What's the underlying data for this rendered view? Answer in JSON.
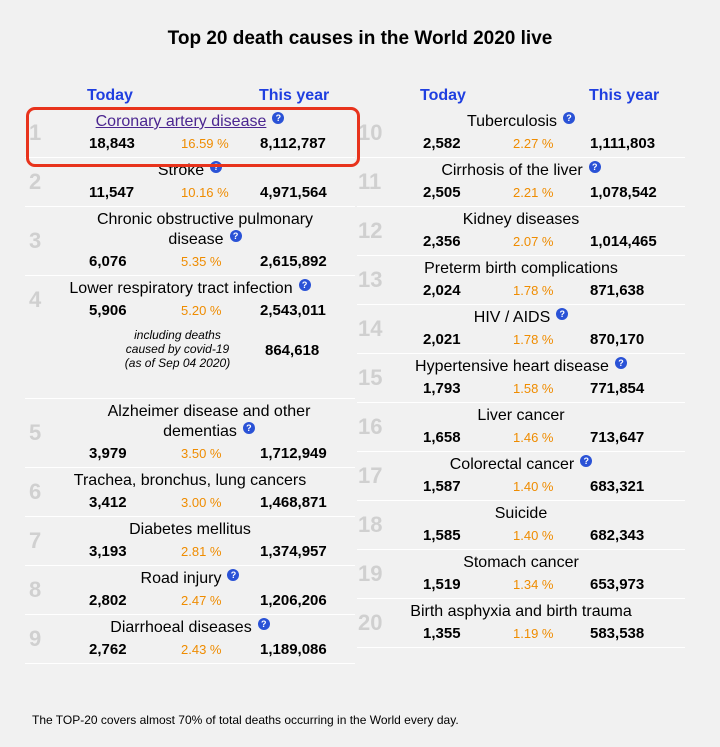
{
  "title": "Top 20 death causes in the World 2020 live",
  "headers": {
    "today": "Today",
    "this_year": "This year"
  },
  "help_glyph": "?",
  "highlight_color": "#e8331c",
  "link_color": "#4b2690",
  "percent_color": "#ef8c00",
  "header_color": "#1f3fe0",
  "left": [
    {
      "rank": "1",
      "name": "Coronary artery disease",
      "today": "18,843",
      "pct": "16.59 %",
      "year": "8,112,787"
    },
    {
      "rank": "2",
      "name": "Stroke",
      "today": "11,547",
      "pct": "10.16 %",
      "year": "4,971,564"
    },
    {
      "rank": "3",
      "name": "Chronic obstructive pulmonary disease",
      "today": "6,076",
      "pct": "5.35 %",
      "year": "2,615,892"
    },
    {
      "rank": "4",
      "name": "Lower respiratory tract infection",
      "today": "5,906",
      "pct": "5.20 %",
      "year": "2,543,011"
    },
    {
      "rank": "5",
      "name": "Alzheimer disease and other dementias",
      "today": "3,979",
      "pct": "3.50 %",
      "year": "1,712,949"
    },
    {
      "rank": "6",
      "name": "Trachea, bronchus, lung cancers",
      "today": "3,412",
      "pct": "3.00 %",
      "year": "1,468,871"
    },
    {
      "rank": "7",
      "name": "Diabetes mellitus",
      "today": "3,193",
      "pct": "2.81 %",
      "year": "1,374,957"
    },
    {
      "rank": "8",
      "name": "Road injury",
      "today": "2,802",
      "pct": "2.47 %",
      "year": "1,206,206"
    },
    {
      "rank": "9",
      "name": "Diarrhoeal diseases",
      "today": "2,762",
      "pct": "2.43 %",
      "year": "1,189,086"
    }
  ],
  "covid": {
    "line1": "including deaths",
    "line2": "caused by covid-19",
    "line3": "(as of Sep 04 2020)",
    "value": "864,618"
  },
  "right": [
    {
      "rank": "10",
      "name": "Tuberculosis",
      "today": "2,582",
      "pct": "2.27 %",
      "year": "1,111,803"
    },
    {
      "rank": "11",
      "name": "Cirrhosis of the liver",
      "today": "2,505",
      "pct": "2.21 %",
      "year": "1,078,542"
    },
    {
      "rank": "12",
      "name": "Kidney diseases",
      "today": "2,356",
      "pct": "2.07 %",
      "year": "1,014,465"
    },
    {
      "rank": "13",
      "name": "Preterm birth complications",
      "today": "2,024",
      "pct": "1.78 %",
      "year": "871,638"
    },
    {
      "rank": "14",
      "name": "HIV / AIDS",
      "today": "2,021",
      "pct": "1.78 %",
      "year": "870,170"
    },
    {
      "rank": "15",
      "name": "Hypertensive heart disease",
      "today": "1,793",
      "pct": "1.58 %",
      "year": "771,854"
    },
    {
      "rank": "16",
      "name": "Liver cancer",
      "today": "1,658",
      "pct": "1.46 %",
      "year": "713,647"
    },
    {
      "rank": "17",
      "name": "Colorectal cancer",
      "today": "1,587",
      "pct": "1.40 %",
      "year": "683,321"
    },
    {
      "rank": "18",
      "name": "Suicide",
      "today": "1,585",
      "pct": "1.40 %",
      "year": "682,343"
    },
    {
      "rank": "19",
      "name": "Stomach cancer",
      "today": "1,519",
      "pct": "1.34 %",
      "year": "653,973"
    },
    {
      "rank": "20",
      "name": "Birth asphyxia and birth trauma",
      "today": "1,355",
      "pct": "1.19 %",
      "year": "583,538"
    }
  ],
  "footnote": "The TOP-20 covers almost 70% of total deaths occurring in the World every day."
}
